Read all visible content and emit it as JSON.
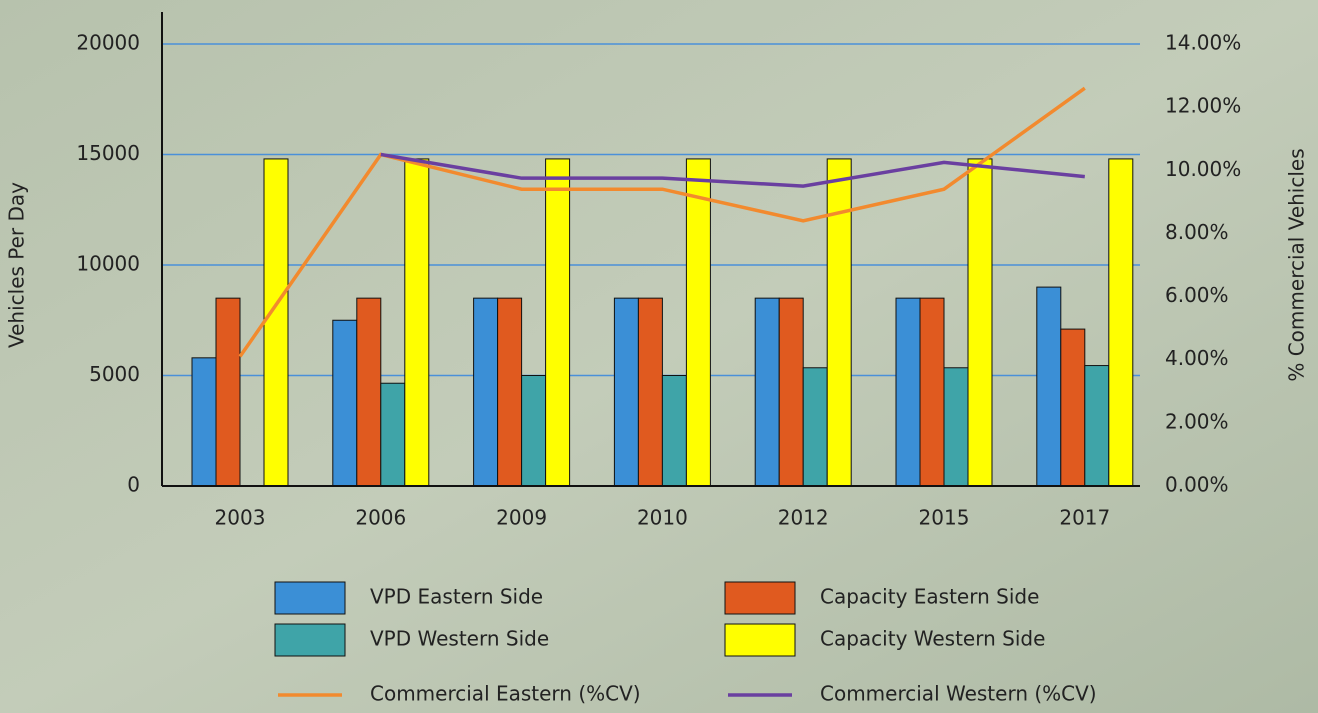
{
  "chart_data": {
    "type": "bar",
    "categories": [
      "2003",
      "2006",
      "2009",
      "2010",
      "2012",
      "2015",
      "2017"
    ],
    "y_label": "Vehicles Per Day",
    "y2_label": "% Commercial Vehicles",
    "ylim": [
      0,
      20000
    ],
    "yticks": [
      0,
      5000,
      10000,
      15000,
      20000
    ],
    "y2lim": [
      0,
      14
    ],
    "y2ticks": [
      {
        "value": 0,
        "label": "0.00%"
      },
      {
        "value": 2,
        "label": "2.00%"
      },
      {
        "value": 4,
        "label": "4.00%"
      },
      {
        "value": 6,
        "label": "6.00%"
      },
      {
        "value": 8,
        "label": "8.00%"
      },
      {
        "value": 10,
        "label": "10.00%"
      },
      {
        "value": 12,
        "label": "12.00%"
      },
      {
        "value": 14,
        "label": "14.00%"
      }
    ],
    "grid": true,
    "series": [
      {
        "name": "VPD Eastern Side",
        "type": "bar",
        "color": "#3b8fd6",
        "values": [
          5800,
          7500,
          8500,
          8500,
          8500,
          8500,
          9000
        ]
      },
      {
        "name": "Capacity Eastern Side",
        "type": "bar",
        "color": "#e05a1f",
        "values": [
          8500,
          8500,
          8500,
          8500,
          8500,
          8500,
          7100
        ]
      },
      {
        "name": "VPD Western Side",
        "type": "bar",
        "color": "#3fa4a8",
        "values": [
          null,
          4650,
          5000,
          5000,
          5350,
          5350,
          5450
        ]
      },
      {
        "name": "Capacity Western Side",
        "type": "bar",
        "color": "#ffff00",
        "values": [
          14800,
          14800,
          14800,
          14800,
          14800,
          14800,
          14800
        ]
      },
      {
        "name": "Commercial Eastern (%CV)",
        "type": "line",
        "axis": "y2",
        "color": "#f28a2e",
        "values": [
          4.1,
          10.5,
          9.4,
          9.4,
          8.4,
          9.4,
          12.6
        ]
      },
      {
        "name": "Commercial Western (%CV)",
        "type": "line",
        "axis": "y2",
        "color": "#6a3fa0",
        "values": [
          null,
          10.5,
          9.75,
          9.75,
          9.5,
          10.25,
          9.8
        ]
      }
    ]
  }
}
